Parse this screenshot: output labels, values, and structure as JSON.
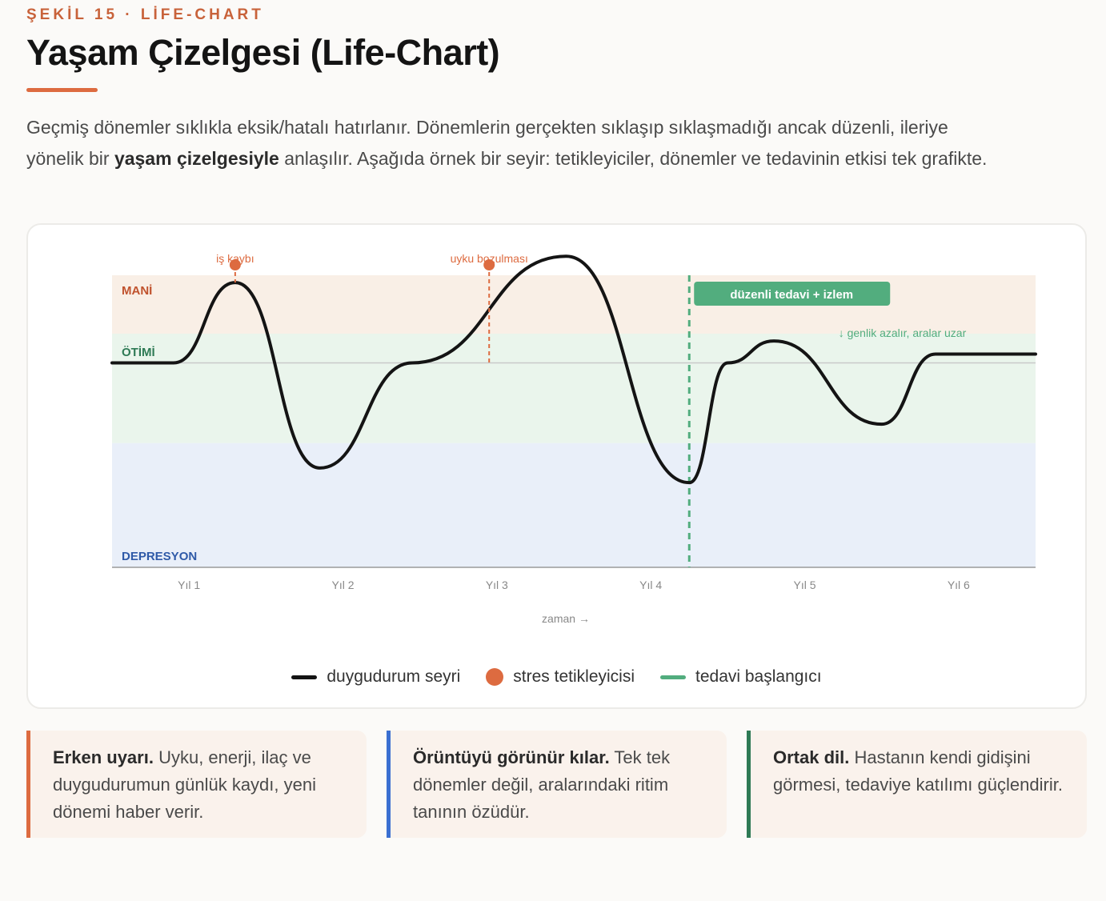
{
  "kicker": "ŞEKİL 15 · LİFE-CHART",
  "title": "Yaşam Çizelgesi (Life-Chart)",
  "intro": {
    "part1": "Geçmiş dönemler sıklıkla eksik/hatalı hatırlanır. Dönemlerin gerçekten sıklaşıp sıklaşmadığı ancak düzenli, ileriye yönelik bir ",
    "bold": "yaşam çizelgesiyle",
    "part2": " anlaşılır. Aşağıda örnek bir seyir: tetikleyiciler, dönemler ve tedavinin etkisi tek grafikte."
  },
  "colors": {
    "accent": "#dd6b40",
    "mania_band": "#f9efe6",
    "euthymia_band": "#eaf5ec",
    "depression_band": "#e9eff9",
    "mania_text": "#c0522d",
    "euthymia_text": "#2e7a55",
    "depression_text": "#2f5aa8",
    "treatment": "#52ad7e",
    "line": "#141414"
  },
  "chart_data": {
    "type": "line",
    "zones": [
      {
        "label": "MANİ",
        "from": 0.6,
        "to": 1.0
      },
      {
        "label": "ÖTİMİ",
        "from": -0.15,
        "to": 0.6
      },
      {
        "label": "DEPRESYON",
        "from": -1.0,
        "to": -0.15
      }
    ],
    "x_ticks": [
      "Yıl 1",
      "Yıl 2",
      "Yıl 3",
      "Yıl 4",
      "Yıl 5",
      "Yıl 6"
    ],
    "x_tick_values": [
      1,
      2,
      3,
      4,
      5,
      6
    ],
    "xlabel": "zaman →",
    "xlim": [
      0.5,
      6.5
    ],
    "ylim": [
      -1,
      1
    ],
    "baseline": 0.4,
    "series": [
      {
        "name": "duygudurum seyri",
        "x": [
          0.5,
          0.9,
          1.3,
          1.85,
          2.45,
          3.45,
          4.25,
          4.5,
          4.8,
          5.5,
          5.85,
          6.5
        ],
        "y": [
          0.4,
          0.4,
          0.95,
          -0.32,
          0.4,
          1.13,
          -0.42,
          0.4,
          0.55,
          -0.02,
          0.46,
          0.46
        ]
      }
    ],
    "triggers": [
      {
        "label": "iş kaybı",
        "x": 1.3
      },
      {
        "label": "uyku bozulması",
        "x": 2.95
      }
    ],
    "treatment": {
      "label": "düzenli tedavi + izlem",
      "x": 4.25,
      "note": "↓ genlik azalır, aralar uzar"
    },
    "legend": [
      {
        "label": "duygudurum seyri",
        "kind": "line"
      },
      {
        "label": "stres tetikleyicisi",
        "kind": "dot"
      },
      {
        "label": "tedavi başlangıcı",
        "kind": "dashed"
      }
    ]
  },
  "cards": [
    {
      "heading": "Erken uyarı.",
      "text": " Uyku, enerji, ilaç ve duygudurumun günlük kaydı, yeni dönemi haber verir.",
      "color": "#dd6b40"
    },
    {
      "heading": "Örüntüyü görünür kılar.",
      "text": " Tek tek dönemler değil, aralarındaki ritim tanının özüdür.",
      "color": "#3a6fd1"
    },
    {
      "heading": "Ortak dil.",
      "text": " Hastanın kendi gidişini görmesi, tedaviye katılımı güçlendirir.",
      "color": "#2e7a55"
    }
  ]
}
